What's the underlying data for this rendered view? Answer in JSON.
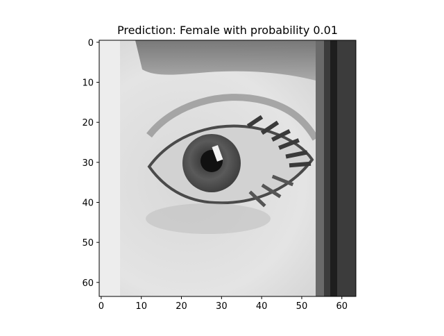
{
  "figure": {
    "title": "Prediction: Female with probability 0.01"
  },
  "chart_data": {
    "type": "heatmap",
    "title": "Prediction: Female with probability 0.01",
    "xlabel": "",
    "ylabel": "",
    "colormap": "gray",
    "image_shape": [
      64,
      64
    ],
    "xlim": [
      -0.5,
      63.5
    ],
    "ylim": [
      63.5,
      -0.5
    ],
    "x_ticks": [
      0,
      10,
      20,
      30,
      40,
      50,
      60
    ],
    "x_tick_labels": [
      "0",
      "10",
      "20",
      "30",
      "40",
      "50",
      "60"
    ],
    "y_ticks": [
      0,
      10,
      20,
      30,
      40,
      50,
      60
    ],
    "y_tick_labels": [
      "0",
      "10",
      "20",
      "30",
      "40",
      "50",
      "60"
    ],
    "grid": false,
    "legend": "none",
    "content_description_values": {
      "subject": "close-up grayscale eye",
      "dark_vertical_band_columns": [
        56,
        63
      ]
    }
  },
  "colors": {
    "axis": "#000000",
    "background": "#ffffff"
  }
}
